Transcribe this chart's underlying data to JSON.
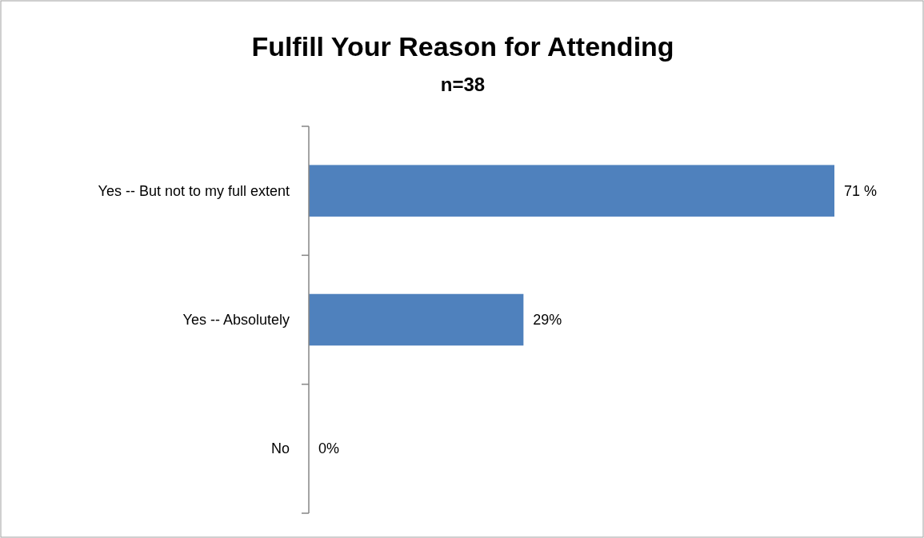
{
  "chart_data": {
    "type": "bar",
    "orientation": "horizontal",
    "title": "Fulfill Your Reason for Attending",
    "subtitle": "n=38",
    "categories": [
      "Yes -- But not to my full extent",
      "Yes -- Absolutely",
      "No"
    ],
    "values": [
      71,
      29,
      0
    ],
    "value_labels": [
      "71 %",
      "29%",
      "0%"
    ],
    "color": "#4f81bd",
    "tick_labels": "y"
  }
}
